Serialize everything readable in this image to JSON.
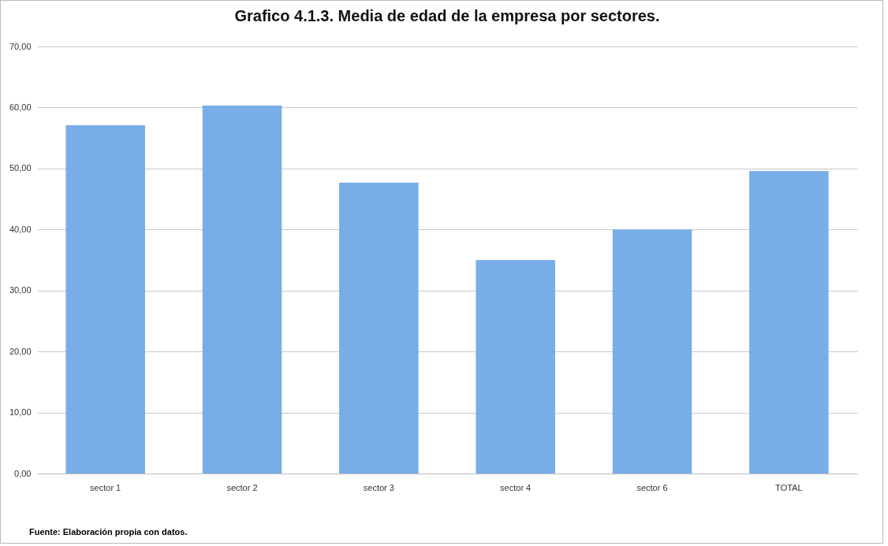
{
  "chart_data": {
    "type": "bar",
    "title": "Grafico 4.1.3. Media de edad de la empresa por sectores.",
    "categories": [
      "sector 1",
      "sector 2",
      "sector 3",
      "sector 4",
      "sector 6",
      "TOTAL"
    ],
    "values": [
      57.1,
      60.3,
      47.7,
      35.0,
      40.0,
      49.6
    ],
    "color": "#78aee8",
    "ylim": [
      0,
      70
    ],
    "yticks": [
      {
        "value": 0,
        "label": "0,00"
      },
      {
        "value": 10,
        "label": "10,00"
      },
      {
        "value": 20,
        "label": "20,00"
      },
      {
        "value": 30,
        "label": "30,00"
      },
      {
        "value": 40,
        "label": "40,00"
      },
      {
        "value": 50,
        "label": "50,00"
      },
      {
        "value": 60,
        "label": "60,00"
      },
      {
        "value": 70,
        "label": "70,00"
      }
    ],
    "grid": "y",
    "annotations": [
      "Fuente: Elaboración propia con datos."
    ]
  }
}
